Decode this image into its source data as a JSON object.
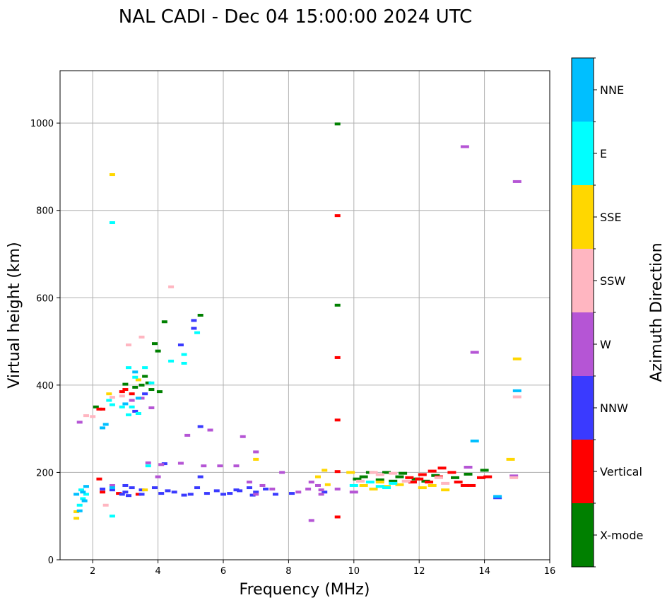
{
  "chart_data": {
    "type": "scatter",
    "title": "NAL CADI - Dec 04 15:00:00 2024 UTC",
    "xlabel": "Frequency (MHz)",
    "ylabel": "Virtual height (km)",
    "xlim": [
      1,
      16
    ],
    "ylim": [
      0,
      1120
    ],
    "xticks": [
      2,
      4,
      6,
      8,
      10,
      12,
      14,
      16
    ],
    "yticks": [
      0,
      200,
      400,
      600,
      800,
      1000
    ],
    "grid": true,
    "colorbar": {
      "title": "Azimuth Direction",
      "categories": [
        {
          "name": "X-mode",
          "color": "#008000"
        },
        {
          "name": "Vertical",
          "color": "#ff0000"
        },
        {
          "name": "NNW",
          "color": "#3a3aff"
        },
        {
          "name": "W",
          "color": "#b555d5"
        },
        {
          "name": "SSW",
          "color": "#ffb6c1"
        },
        {
          "name": "SSE",
          "color": "#ffd700"
        },
        {
          "name": "E",
          "color": "#00ffff"
        },
        {
          "name": "NNE",
          "color": "#00bfff"
        }
      ]
    },
    "series": [
      {
        "name": "X-mode",
        "points": [
          [
            9.5,
            998
          ],
          [
            9.5,
            583
          ],
          [
            4.2,
            545
          ],
          [
            3.9,
            495
          ],
          [
            4.0,
            478
          ],
          [
            3.7,
            405
          ],
          [
            4.05,
            385
          ],
          [
            3.5,
            400
          ],
          [
            3.3,
            395
          ],
          [
            2.1,
            350
          ],
          [
            11.0,
            200
          ],
          [
            11.5,
            198
          ],
          [
            11.9,
            185
          ],
          [
            12.5,
            193
          ],
          [
            13.1,
            188
          ],
          [
            13.5,
            196
          ],
          [
            14.0,
            205
          ],
          [
            10.1,
            185
          ],
          [
            10.8,
            183
          ],
          [
            11.4,
            190
          ],
          [
            5.3,
            560
          ],
          [
            3.6,
            420
          ],
          [
            3.0,
            402
          ],
          [
            3.8,
            390
          ],
          [
            12.2,
            180
          ],
          [
            10.5,
            200
          ],
          [
            10.3,
            190
          ],
          [
            11.2,
            180
          ]
        ]
      },
      {
        "name": "Vertical",
        "points": [
          [
            9.5,
            788
          ],
          [
            9.5,
            463
          ],
          [
            9.5,
            320
          ],
          [
            9.5,
            202
          ],
          [
            9.5,
            98
          ],
          [
            2.2,
            345
          ],
          [
            2.3,
            345
          ],
          [
            2.9,
            385
          ],
          [
            3.0,
            390
          ],
          [
            3.2,
            380
          ],
          [
            2.3,
            155
          ],
          [
            12.0,
            185
          ],
          [
            12.3,
            178
          ],
          [
            12.6,
            190
          ],
          [
            12.7,
            210
          ],
          [
            13.0,
            200
          ],
          [
            13.2,
            178
          ],
          [
            13.6,
            170
          ],
          [
            13.9,
            188
          ],
          [
            14.1,
            190
          ],
          [
            11.7,
            188
          ],
          [
            12.4,
            203
          ],
          [
            3.4,
            150
          ],
          [
            2.8,
            152
          ],
          [
            2.2,
            185
          ],
          [
            13.4,
            170
          ],
          [
            12.1,
            195
          ],
          [
            11.8,
            178
          ]
        ]
      },
      {
        "name": "NNW",
        "points": [
          [
            5.3,
            305
          ],
          [
            5.1,
            530
          ],
          [
            5.1,
            548
          ],
          [
            4.7,
            492
          ],
          [
            4.2,
            220
          ],
          [
            3.0,
            170
          ],
          [
            3.2,
            165
          ],
          [
            3.5,
            160
          ],
          [
            4.1,
            152
          ],
          [
            4.5,
            155
          ],
          [
            5.0,
            150
          ],
          [
            5.5,
            152
          ],
          [
            6.0,
            150
          ],
          [
            6.5,
            158
          ],
          [
            7.0,
            155
          ],
          [
            7.6,
            150
          ],
          [
            8.1,
            152
          ],
          [
            3.6,
            380
          ],
          [
            3.3,
            340
          ],
          [
            2.6,
            160
          ],
          [
            2.3,
            162
          ],
          [
            6.8,
            165
          ],
          [
            5.8,
            158
          ],
          [
            4.8,
            148
          ],
          [
            3.9,
            165
          ],
          [
            9.1,
            155
          ],
          [
            14.4,
            142
          ],
          [
            3.5,
            150
          ],
          [
            3.0,
            155
          ],
          [
            6.9,
            148
          ],
          [
            7.3,
            162
          ],
          [
            5.2,
            165
          ],
          [
            4.3,
            158
          ],
          [
            5.3,
            190
          ],
          [
            6.2,
            152
          ],
          [
            6.4,
            160
          ],
          [
            2.9,
            150
          ],
          [
            3.1,
            147
          ]
        ]
      },
      {
        "name": "W",
        "points": [
          [
            13.4,
            946
          ],
          [
            15.0,
            866
          ],
          [
            13.7,
            475
          ],
          [
            6.6,
            282
          ],
          [
            4.9,
            285
          ],
          [
            5.6,
            297
          ],
          [
            7.0,
            247
          ],
          [
            3.7,
            222
          ],
          [
            4.1,
            218
          ],
          [
            4.7,
            221
          ],
          [
            5.4,
            215
          ],
          [
            5.9,
            215
          ],
          [
            6.4,
            215
          ],
          [
            7.8,
            200
          ],
          [
            8.7,
            178
          ],
          [
            9.0,
            160
          ],
          [
            8.6,
            162
          ],
          [
            8.9,
            170
          ],
          [
            6.8,
            178
          ],
          [
            7.2,
            170
          ],
          [
            7.5,
            162
          ],
          [
            8.3,
            155
          ],
          [
            9.5,
            162
          ],
          [
            9.0,
            150
          ],
          [
            14.9,
            192
          ],
          [
            10.0,
            155
          ],
          [
            13.5,
            212
          ],
          [
            3.8,
            348
          ],
          [
            3.2,
            365
          ],
          [
            3.5,
            370
          ],
          [
            1.6,
            315
          ],
          [
            2.6,
            170
          ],
          [
            8.7,
            90
          ],
          [
            7.0,
            150
          ],
          [
            4.0,
            190
          ]
        ]
      },
      {
        "name": "SSW",
        "points": [
          [
            15.0,
            373
          ],
          [
            4.4,
            625
          ],
          [
            3.5,
            510
          ],
          [
            3.1,
            492
          ],
          [
            2.6,
            372
          ],
          [
            2.9,
            375
          ],
          [
            2.4,
            125
          ],
          [
            10.6,
            200
          ],
          [
            10.8,
            195
          ],
          [
            11.2,
            198
          ],
          [
            11.6,
            180
          ],
          [
            12.6,
            188
          ],
          [
            14.9,
            188
          ],
          [
            1.8,
            330
          ],
          [
            2.0,
            328
          ],
          [
            12.8,
            175
          ],
          [
            10.2,
            180
          ]
        ]
      },
      {
        "name": "SSE",
        "points": [
          [
            2.6,
            882
          ],
          [
            15.0,
            460
          ],
          [
            14.8,
            230
          ],
          [
            7.0,
            230
          ],
          [
            9.1,
            205
          ],
          [
            8.9,
            190
          ],
          [
            9.2,
            172
          ],
          [
            10.3,
            170
          ],
          [
            10.6,
            162
          ],
          [
            11.0,
            168
          ],
          [
            11.4,
            172
          ],
          [
            12.1,
            165
          ],
          [
            12.4,
            170
          ],
          [
            9.9,
            200
          ],
          [
            1.5,
            95
          ],
          [
            3.6,
            160
          ],
          [
            1.5,
            110
          ],
          [
            10.8,
            178
          ],
          [
            2.5,
            380
          ],
          [
            12.8,
            160
          ],
          [
            3.4,
            412
          ]
        ]
      },
      {
        "name": "E",
        "points": [
          [
            2.6,
            772
          ],
          [
            5.2,
            520
          ],
          [
            4.4,
            455
          ],
          [
            4.8,
            450
          ],
          [
            4.8,
            470
          ],
          [
            3.1,
            440
          ],
          [
            3.3,
            418
          ],
          [
            3.6,
            440
          ],
          [
            3.8,
            405
          ],
          [
            2.5,
            365
          ],
          [
            2.6,
            355
          ],
          [
            3.2,
            350
          ],
          [
            3.1,
            332
          ],
          [
            2.9,
            350
          ],
          [
            10.5,
            178
          ],
          [
            10.8,
            168
          ],
          [
            11.0,
            165
          ],
          [
            11.2,
            175
          ],
          [
            1.7,
            140
          ],
          [
            1.6,
            125
          ],
          [
            1.8,
            150
          ],
          [
            3.7,
            215
          ],
          [
            2.6,
            100
          ],
          [
            3.4,
            335
          ],
          [
            1.65,
            160
          ],
          [
            10.0,
            170
          ]
        ]
      },
      {
        "name": "NNE",
        "points": [
          [
            15.0,
            387
          ],
          [
            13.7,
            272
          ],
          [
            14.4,
            145
          ],
          [
            1.8,
            168
          ],
          [
            1.7,
            155
          ],
          [
            1.5,
            150
          ],
          [
            2.4,
            310
          ],
          [
            2.6,
            165
          ],
          [
            3.0,
            357
          ],
          [
            3.3,
            430
          ],
          [
            1.75,
            135
          ],
          [
            1.6,
            112
          ],
          [
            2.3,
            302
          ],
          [
            3.4,
            370
          ]
        ]
      }
    ]
  }
}
